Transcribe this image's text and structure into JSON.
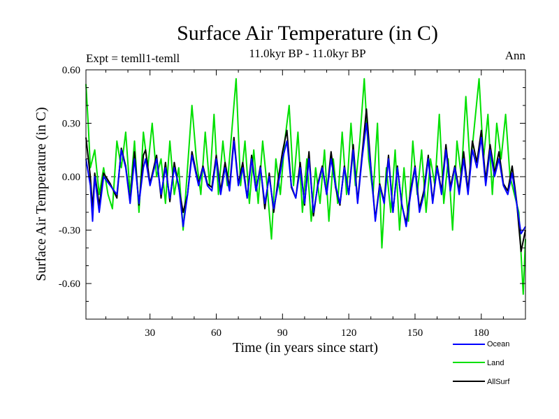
{
  "chart_data": {
    "type": "line",
    "title": "Surface Air Temperature (in C)",
    "subtitle": "11.0kyr BP - 11.0kyr BP",
    "left_label": "Expt = temll1-temll",
    "right_label": "Ann",
    "xlabel": "Time (in years since start)",
    "ylabel": "Surface Air Temperature (in C)",
    "xlim": [
      1,
      200
    ],
    "ylim": [
      -0.8,
      0.6
    ],
    "xticks": [
      30,
      60,
      90,
      120,
      150,
      180
    ],
    "yticks": [
      0.6,
      0.3,
      0.0,
      -0.3,
      -0.6
    ],
    "ytick_labels": [
      "0.60",
      "0.30",
      "0.00",
      "-0.30",
      "-0.60"
    ],
    "zero_line": "dashed",
    "legend_position": "bottom-right",
    "series": [
      {
        "name": "Ocean",
        "color": "#0000ff",
        "knots_x": [
          1,
          3,
          4,
          5,
          7,
          9,
          12,
          15,
          17,
          19,
          21,
          23,
          25,
          27,
          28,
          30,
          33,
          35,
          37,
          39,
          41,
          43,
          45,
          47,
          49,
          52,
          54,
          56,
          58,
          60,
          62,
          64,
          66,
          68,
          70,
          72,
          74,
          76,
          78,
          80,
          82,
          84,
          86,
          88,
          90,
          92,
          94,
          96,
          98,
          100,
          102,
          104,
          106,
          108,
          110,
          112,
          114,
          116,
          118,
          120,
          122,
          124,
          126,
          128,
          130,
          132,
          134,
          136,
          138,
          140,
          142,
          144,
          146,
          148,
          150,
          152,
          154,
          156,
          158,
          160,
          162,
          164,
          166,
          168,
          170,
          172,
          174,
          176,
          178,
          180,
          182,
          184,
          186,
          188,
          190,
          192,
          194,
          196,
          198,
          200
        ],
        "knots_y": [
          0.1,
          -0.05,
          -0.25,
          0.0,
          -0.2,
          0.0,
          -0.05,
          -0.1,
          0.15,
          0.05,
          -0.15,
          0.1,
          -0.15,
          0.05,
          0.1,
          -0.05,
          0.1,
          -0.1,
          0.05,
          -0.12,
          0.05,
          -0.05,
          -0.28,
          -0.1,
          0.12,
          -0.05,
          0.05,
          -0.05,
          -0.08,
          0.1,
          -0.1,
          0.05,
          -0.08,
          0.2,
          -0.05,
          0.05,
          -0.12,
          0.1,
          -0.08,
          0.05,
          -0.15,
          0.0,
          -0.18,
          -0.05,
          0.1,
          0.2,
          -0.05,
          -0.12,
          0.05,
          -0.15,
          0.1,
          -0.2,
          -0.05,
          0.05,
          -0.1,
          0.1,
          -0.05,
          -0.15,
          0.05,
          -0.1,
          0.15,
          -0.15,
          0.1,
          0.3,
          0.05,
          -0.25,
          -0.05,
          -0.15,
          0.1,
          -0.2,
          0.05,
          -0.15,
          -0.28,
          -0.1,
          0.05,
          -0.2,
          -0.1,
          0.1,
          -0.15,
          0.05,
          -0.1,
          0.15,
          -0.08,
          0.05,
          -0.1,
          0.1,
          -0.1,
          0.15,
          0.05,
          0.22,
          -0.05,
          0.15,
          0.0,
          0.1,
          -0.05,
          -0.1,
          0.02,
          -0.15,
          -0.32,
          -0.28
        ]
      },
      {
        "name": "Land",
        "color": "#00e000",
        "knots_x": [
          1,
          2,
          3,
          5,
          7,
          9,
          11,
          13,
          15,
          17,
          19,
          21,
          23,
          25,
          27,
          29,
          31,
          33,
          35,
          37,
          39,
          41,
          43,
          45,
          47,
          49,
          51,
          53,
          55,
          57,
          59,
          61,
          63,
          65,
          67,
          69,
          71,
          73,
          75,
          77,
          79,
          81,
          83,
          85,
          87,
          89,
          91,
          93,
          95,
          97,
          99,
          101,
          103,
          105,
          107,
          109,
          111,
          113,
          115,
          117,
          119,
          121,
          123,
          125,
          127,
          129,
          131,
          133,
          135,
          137,
          139,
          141,
          143,
          145,
          147,
          149,
          151,
          153,
          155,
          157,
          159,
          161,
          163,
          165,
          167,
          169,
          171,
          173,
          175,
          177,
          179,
          181,
          183,
          185,
          187,
          189,
          191,
          193,
          195,
          197,
          199,
          200
        ],
        "knots_y": [
          0.52,
          0.3,
          0.05,
          0.15,
          -0.1,
          0.05,
          -0.1,
          -0.18,
          0.2,
          0.05,
          0.25,
          -0.1,
          0.2,
          -0.2,
          0.25,
          0.05,
          0.3,
          0.0,
          0.1,
          -0.15,
          0.2,
          -0.1,
          0.05,
          -0.3,
          0.05,
          0.4,
          0.1,
          -0.1,
          0.25,
          -0.05,
          0.35,
          -0.1,
          0.2,
          -0.05,
          0.25,
          0.55,
          -0.05,
          0.2,
          -0.15,
          0.15,
          -0.15,
          0.2,
          -0.05,
          -0.35,
          0.1,
          -0.1,
          0.2,
          0.4,
          -0.05,
          0.25,
          -0.2,
          0.1,
          -0.25,
          0.05,
          -0.15,
          0.15,
          -0.25,
          0.1,
          -0.15,
          0.25,
          -0.1,
          0.3,
          -0.05,
          0.2,
          0.55,
          0.1,
          -0.1,
          0.3,
          -0.4,
          0.05,
          -0.2,
          0.15,
          -0.3,
          0.05,
          -0.25,
          0.2,
          -0.1,
          0.15,
          -0.2,
          0.1,
          -0.05,
          0.35,
          -0.15,
          0.1,
          -0.3,
          0.2,
          0.0,
          0.45,
          0.05,
          0.3,
          0.55,
          0.1,
          0.35,
          -0.1,
          0.3,
          0.1,
          0.35,
          0.0,
          -0.1,
          -0.2,
          -0.66,
          -0.35
        ]
      },
      {
        "name": "AllSurf",
        "color": "#000000",
        "knots_x": [
          1,
          3,
          4,
          5,
          7,
          9,
          12,
          15,
          17,
          19,
          21,
          23,
          25,
          27,
          28,
          30,
          33,
          35,
          37,
          39,
          41,
          43,
          45,
          47,
          49,
          52,
          54,
          56,
          58,
          60,
          62,
          64,
          66,
          68,
          70,
          72,
          74,
          76,
          78,
          80,
          82,
          84,
          86,
          88,
          90,
          92,
          94,
          96,
          98,
          100,
          102,
          104,
          106,
          108,
          110,
          112,
          114,
          116,
          118,
          120,
          122,
          124,
          126,
          128,
          130,
          132,
          134,
          136,
          138,
          140,
          142,
          144,
          146,
          148,
          150,
          152,
          154,
          156,
          158,
          160,
          162,
          164,
          166,
          168,
          170,
          172,
          174,
          176,
          178,
          180,
          182,
          184,
          186,
          188,
          190,
          192,
          194,
          196,
          198,
          200
        ],
        "knots_y": [
          0.22,
          0.0,
          -0.18,
          0.02,
          -0.16,
          0.02,
          -0.04,
          -0.12,
          0.16,
          0.06,
          -0.14,
          0.14,
          -0.16,
          0.12,
          0.15,
          -0.04,
          0.12,
          -0.12,
          0.08,
          -0.14,
          0.08,
          -0.06,
          -0.2,
          -0.1,
          0.14,
          -0.04,
          0.06,
          -0.04,
          -0.06,
          0.12,
          -0.08,
          0.08,
          -0.06,
          0.22,
          -0.04,
          0.08,
          -0.12,
          0.12,
          -0.08,
          0.06,
          -0.18,
          0.02,
          -0.2,
          -0.02,
          0.14,
          0.26,
          -0.06,
          -0.12,
          0.08,
          -0.16,
          0.14,
          -0.22,
          -0.04,
          0.06,
          -0.1,
          0.14,
          -0.06,
          -0.16,
          0.06,
          -0.1,
          0.18,
          -0.14,
          0.12,
          0.38,
          0.06,
          -0.24,
          -0.04,
          -0.14,
          0.12,
          -0.2,
          0.06,
          -0.16,
          -0.26,
          -0.08,
          0.06,
          -0.18,
          -0.08,
          0.12,
          -0.14,
          0.06,
          -0.08,
          0.18,
          -0.06,
          0.06,
          -0.08,
          0.14,
          -0.08,
          0.2,
          0.08,
          0.26,
          -0.02,
          0.18,
          0.02,
          0.14,
          -0.04,
          -0.08,
          0.06,
          -0.14,
          -0.42,
          -0.3
        ]
      }
    ]
  }
}
